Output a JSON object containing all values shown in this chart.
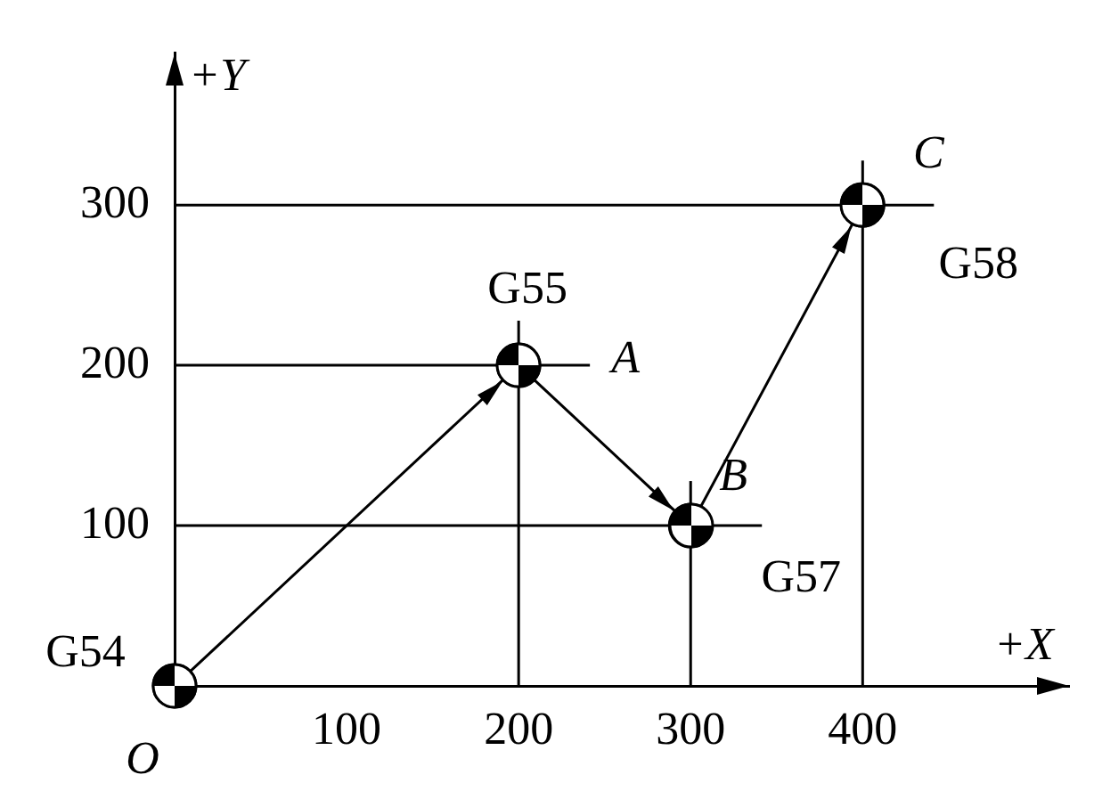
{
  "chart_data": {
    "type": "line",
    "xlabel": "+X",
    "ylabel": "+Y",
    "x": [
      0,
      200,
      300,
      400
    ],
    "values": [
      0,
      200,
      100,
      300
    ],
    "color": "#000000",
    "marker": "circle",
    "xlim": [
      0,
      520
    ],
    "ylim": [
      0,
      395
    ],
    "xticks": [
      100,
      200,
      300,
      400
    ],
    "yticks": [
      100,
      200,
      300
    ],
    "grid": false,
    "legend": false,
    "ref_lines": [
      {
        "axis": "y",
        "value": 100
      },
      {
        "axis": "y",
        "value": 200
      },
      {
        "axis": "y",
        "value": 300
      },
      {
        "axis": "x",
        "value": 200
      },
      {
        "axis": "x",
        "value": 300
      },
      {
        "axis": "x",
        "value": 400
      }
    ],
    "annotations": [
      {
        "text": "G54",
        "x": 0,
        "y": 0
      },
      {
        "text": "O",
        "x": 0,
        "y": 0
      },
      {
        "text": "G55",
        "x": 200,
        "y": 200
      },
      {
        "text": "A",
        "x": 200,
        "y": 200
      },
      {
        "text": "B",
        "x": 300,
        "y": 100
      },
      {
        "text": "G57",
        "x": 300,
        "y": 100
      },
      {
        "text": "C",
        "x": 400,
        "y": 300
      },
      {
        "text": "G58",
        "x": 400,
        "y": 300
      }
    ]
  }
}
